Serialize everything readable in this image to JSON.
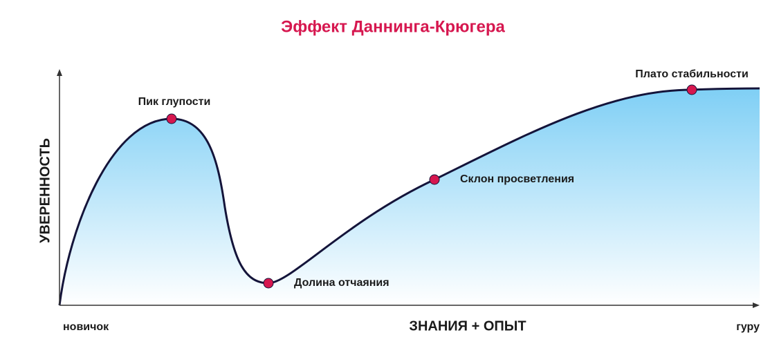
{
  "title": "Эффект Даннинга-Крюгера",
  "y_axis_label": "УВЕРЕННОСТЬ",
  "x_axis_label": "ЗНАНИЯ + ОПЫТ",
  "x_start_label": "новичок",
  "x_end_label": "гуру",
  "points": [
    {
      "label": "Пик глупости"
    },
    {
      "label": "Долина отчаяния"
    },
    {
      "label": "Склон просветления"
    },
    {
      "label": "Плато стабильности"
    }
  ]
}
